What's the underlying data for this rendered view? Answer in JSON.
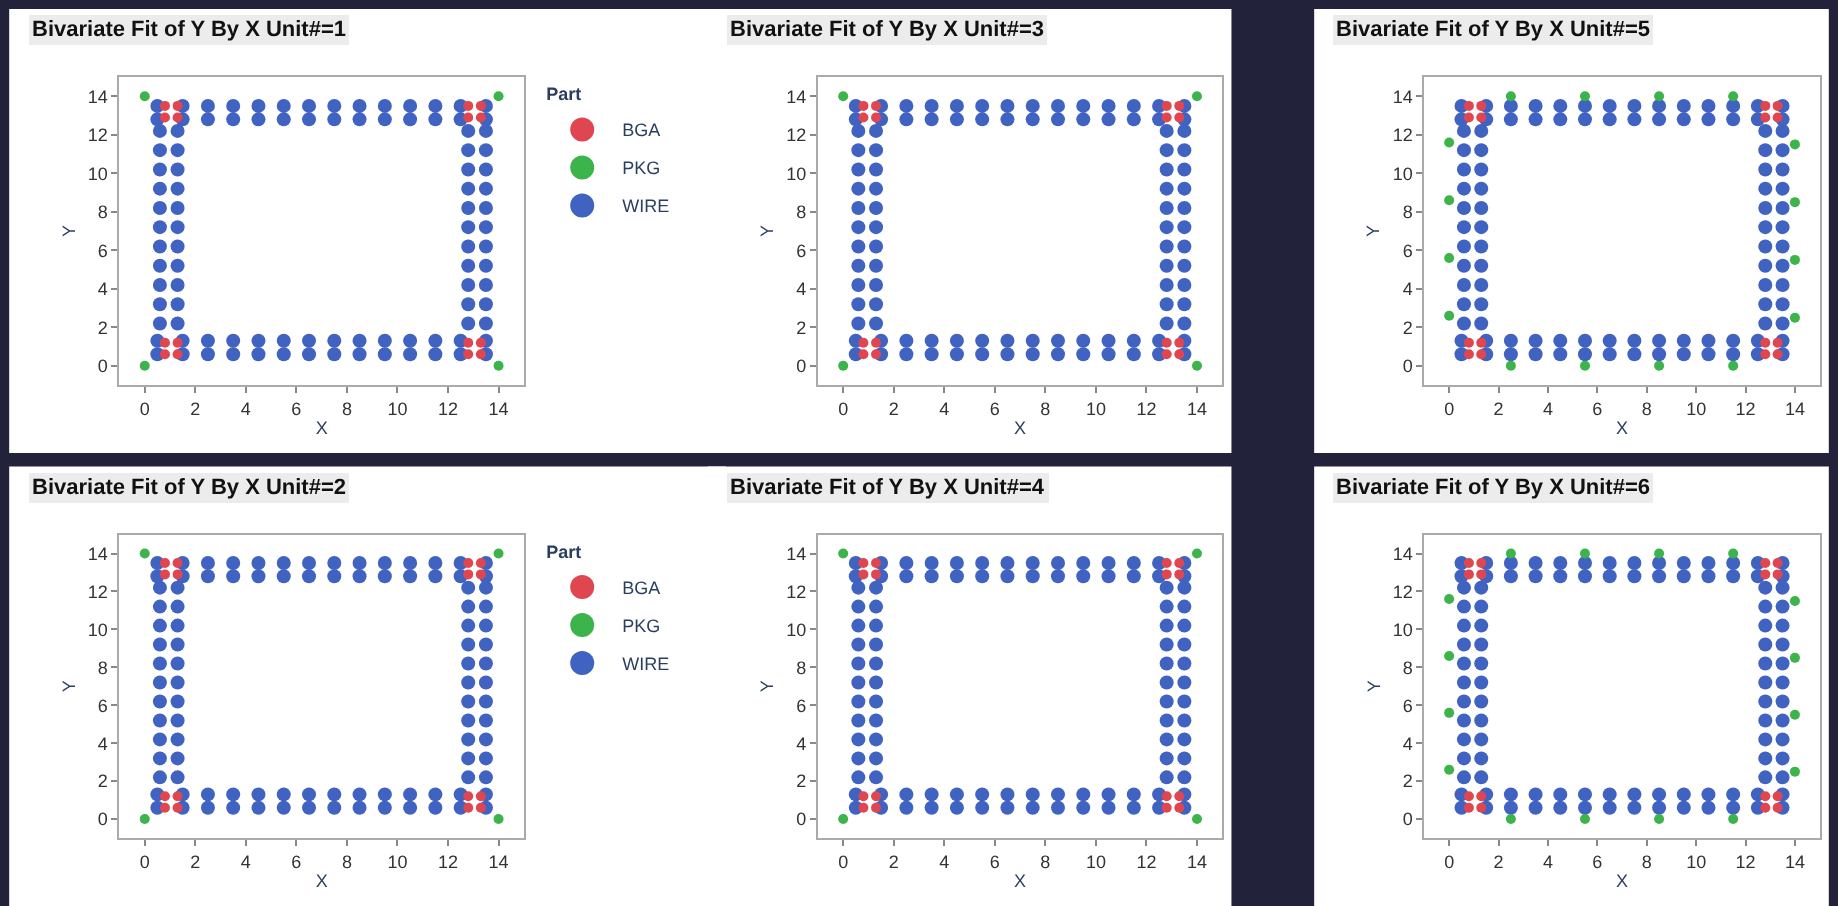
{
  "chart_data": [
    {
      "type": "scatter",
      "title": "Bivariate Fit of Y By X Unit#=1",
      "xlabel": "X",
      "ylabel": "Y",
      "legend_title": "Part",
      "legend": "right",
      "xlim": [
        -1,
        15
      ],
      "ylim": [
        -1,
        15
      ],
      "xticks": [
        0,
        2,
        4,
        6,
        8,
        10,
        12,
        14
      ],
      "yticks": [
        0,
        2,
        4,
        6,
        8,
        10,
        12,
        14
      ],
      "series": [
        {
          "name": "BGA",
          "color": "#e0464f",
          "x": [
            0.8,
            1.3,
            0.8,
            1.3,
            12.8,
            13.3,
            12.8,
            13.3,
            0.8,
            1.3,
            0.8,
            1.3,
            12.8,
            13.3,
            12.8,
            13.3
          ],
          "values": [
            0.6,
            0.6,
            1.2,
            1.2,
            0.6,
            0.6,
            1.2,
            1.2,
            12.9,
            12.9,
            13.5,
            13.5,
            12.9,
            12.9,
            13.5,
            13.5
          ]
        },
        {
          "name": "PKG",
          "color": "#3cb44b",
          "x": [
            0,
            0,
            14,
            14
          ],
          "values": [
            0,
            14,
            0,
            14
          ]
        },
        {
          "name": "WIRE",
          "color": "#4062c0",
          "x": [
            0.5,
            1.5,
            2.5,
            3.5,
            4.5,
            5.5,
            6.5,
            7.5,
            8.5,
            9.5,
            10.5,
            11.5,
            12.5,
            13.5,
            0.5,
            1.5,
            2.5,
            3.5,
            4.5,
            5.5,
            6.5,
            7.5,
            8.5,
            9.5,
            10.5,
            11.5,
            12.5,
            13.5,
            0.5,
            1.5,
            2.5,
            3.5,
            4.5,
            5.5,
            6.5,
            7.5,
            8.5,
            9.5,
            10.5,
            11.5,
            12.5,
            13.5,
            0.5,
            1.5,
            2.5,
            3.5,
            4.5,
            5.5,
            6.5,
            7.5,
            8.5,
            9.5,
            10.5,
            11.5,
            12.5,
            13.5,
            0.6,
            0.6,
            0.6,
            0.6,
            0.6,
            0.6,
            0.6,
            0.6,
            0.6,
            0.6,
            0.6,
            1.3,
            1.3,
            1.3,
            1.3,
            1.3,
            1.3,
            1.3,
            1.3,
            1.3,
            1.3,
            1.3,
            12.8,
            12.8,
            12.8,
            12.8,
            12.8,
            12.8,
            12.8,
            12.8,
            12.8,
            12.8,
            12.8,
            13.5,
            13.5,
            13.5,
            13.5,
            13.5,
            13.5,
            13.5,
            13.5,
            13.5,
            13.5,
            13.5
          ],
          "values": [
            0.6,
            0.6,
            0.6,
            0.6,
            0.6,
            0.6,
            0.6,
            0.6,
            0.6,
            0.6,
            0.6,
            0.6,
            0.6,
            0.6,
            1.3,
            1.3,
            1.3,
            1.3,
            1.3,
            1.3,
            1.3,
            1.3,
            1.3,
            1.3,
            1.3,
            1.3,
            1.3,
            1.3,
            12.8,
            12.8,
            12.8,
            12.8,
            12.8,
            12.8,
            12.8,
            12.8,
            12.8,
            12.8,
            12.8,
            12.8,
            12.8,
            12.8,
            13.5,
            13.5,
            13.5,
            13.5,
            13.5,
            13.5,
            13.5,
            13.5,
            13.5,
            13.5,
            13.5,
            13.5,
            13.5,
            13.5,
            2.2,
            3.2,
            4.2,
            5.2,
            6.2,
            7.2,
            8.2,
            9.2,
            10.2,
            11.2,
            12.2,
            2.2,
            3.2,
            4.2,
            5.2,
            6.2,
            7.2,
            8.2,
            9.2,
            10.2,
            11.2,
            12.2,
            2.2,
            3.2,
            4.2,
            5.2,
            6.2,
            7.2,
            8.2,
            9.2,
            10.2,
            11.2,
            12.2,
            2.2,
            3.2,
            4.2,
            5.2,
            6.2,
            7.2,
            8.2,
            9.2,
            10.2,
            11.2,
            12.2
          ]
        }
      ]
    },
    {
      "type": "scatter",
      "title": "Bivariate Fit of Y By X Unit#=3",
      "xlabel": "X",
      "ylabel": "Y",
      "xlim": [
        -1,
        15
      ],
      "ylim": [
        -1,
        15
      ],
      "xticks": [
        0,
        2,
        4,
        6,
        8,
        10,
        12,
        14
      ],
      "yticks": [
        0,
        2,
        4,
        6,
        8,
        10,
        12,
        14
      ],
      "series": [
        {
          "color": "#e0464f",
          "x": [
            0.8,
            1.3,
            0.8,
            1.3,
            12.8,
            13.3,
            12.8,
            13.3,
            0.8,
            1.3,
            0.8,
            1.3,
            12.8,
            13.3,
            12.8,
            13.3
          ],
          "values": [
            0.6,
            0.6,
            1.2,
            1.2,
            0.6,
            0.6,
            1.2,
            1.2,
            12.9,
            12.9,
            13.5,
            13.5,
            12.9,
            12.9,
            13.5,
            13.5
          ]
        },
        {
          "color": "#3cb44b",
          "x": [
            0,
            0,
            14,
            14
          ],
          "values": [
            0,
            14,
            0,
            14
          ]
        },
        {
          "color": "#4062c0",
          "x": [
            0.5,
            1.5,
            2.5,
            3.5,
            4.5,
            5.5,
            6.5,
            7.5,
            8.5,
            9.5,
            10.5,
            11.5,
            12.5,
            13.5,
            0.5,
            1.5,
            2.5,
            3.5,
            4.5,
            5.5,
            6.5,
            7.5,
            8.5,
            9.5,
            10.5,
            11.5,
            12.5,
            13.5,
            0.5,
            1.5,
            2.5,
            3.5,
            4.5,
            5.5,
            6.5,
            7.5,
            8.5,
            9.5,
            10.5,
            11.5,
            12.5,
            13.5,
            0.5,
            1.5,
            2.5,
            3.5,
            4.5,
            5.5,
            6.5,
            7.5,
            8.5,
            9.5,
            10.5,
            11.5,
            12.5,
            13.5,
            0.6,
            0.6,
            0.6,
            0.6,
            0.6,
            0.6,
            0.6,
            0.6,
            0.6,
            0.6,
            0.6,
            1.3,
            1.3,
            1.3,
            1.3,
            1.3,
            1.3,
            1.3,
            1.3,
            1.3,
            1.3,
            1.3,
            12.8,
            12.8,
            12.8,
            12.8,
            12.8,
            12.8,
            12.8,
            12.8,
            12.8,
            12.8,
            12.8,
            13.5,
            13.5,
            13.5,
            13.5,
            13.5,
            13.5,
            13.5,
            13.5,
            13.5,
            13.5,
            13.5
          ],
          "values": [
            0.6,
            0.6,
            0.6,
            0.6,
            0.6,
            0.6,
            0.6,
            0.6,
            0.6,
            0.6,
            0.6,
            0.6,
            0.6,
            0.6,
            1.3,
            1.3,
            1.3,
            1.3,
            1.3,
            1.3,
            1.3,
            1.3,
            1.3,
            1.3,
            1.3,
            1.3,
            1.3,
            1.3,
            12.8,
            12.8,
            12.8,
            12.8,
            12.8,
            12.8,
            12.8,
            12.8,
            12.8,
            12.8,
            12.8,
            12.8,
            12.8,
            12.8,
            13.5,
            13.5,
            13.5,
            13.5,
            13.5,
            13.5,
            13.5,
            13.5,
            13.5,
            13.5,
            13.5,
            13.5,
            13.5,
            13.5,
            2.2,
            3.2,
            4.2,
            5.2,
            6.2,
            7.2,
            8.2,
            9.2,
            10.2,
            11.2,
            12.2,
            2.2,
            3.2,
            4.2,
            5.2,
            6.2,
            7.2,
            8.2,
            9.2,
            10.2,
            11.2,
            12.2,
            2.2,
            3.2,
            4.2,
            5.2,
            6.2,
            7.2,
            8.2,
            9.2,
            10.2,
            11.2,
            12.2,
            2.2,
            3.2,
            4.2,
            5.2,
            6.2,
            7.2,
            8.2,
            9.2,
            10.2,
            11.2,
            12.2
          ]
        }
      ]
    },
    {
      "type": "scatter",
      "title": "Bivariate Fit of Y By X Unit#=5",
      "xlabel": "X",
      "ylabel": "Y",
      "xlim": [
        -1,
        15
      ],
      "ylim": [
        -1,
        15
      ],
      "xticks": [
        0,
        2,
        4,
        6,
        8,
        10,
        12,
        14
      ],
      "yticks": [
        0,
        2,
        4,
        6,
        8,
        10,
        12,
        14
      ],
      "series": [
        {
          "color": "#e0464f",
          "x": [
            0.8,
            1.3,
            0.8,
            1.3,
            12.8,
            13.3,
            12.8,
            13.3,
            0.8,
            1.3,
            0.8,
            1.3,
            12.8,
            13.3,
            12.8,
            13.3
          ],
          "values": [
            0.6,
            0.6,
            1.2,
            1.2,
            0.6,
            0.6,
            1.2,
            1.2,
            12.9,
            12.9,
            13.5,
            13.5,
            12.9,
            12.9,
            13.5,
            13.5
          ]
        },
        {
          "color": "#3cb44b",
          "x": [
            2.5,
            5.5,
            8.5,
            11.5,
            2.5,
            5.5,
            8.5,
            11.5,
            0,
            0,
            0,
            0,
            14,
            14,
            14,
            14
          ],
          "values": [
            14,
            14,
            14,
            14,
            0,
            0,
            0,
            0,
            2.6,
            5.6,
            8.6,
            11.6,
            2.5,
            5.5,
            8.5,
            11.5
          ]
        },
        {
          "color": "#4062c0",
          "x": [
            0.5,
            1.5,
            2.5,
            3.5,
            4.5,
            5.5,
            6.5,
            7.5,
            8.5,
            9.5,
            10.5,
            11.5,
            12.5,
            13.5,
            0.5,
            1.5,
            2.5,
            3.5,
            4.5,
            5.5,
            6.5,
            7.5,
            8.5,
            9.5,
            10.5,
            11.5,
            12.5,
            13.5,
            0.5,
            1.5,
            2.5,
            3.5,
            4.5,
            5.5,
            6.5,
            7.5,
            8.5,
            9.5,
            10.5,
            11.5,
            12.5,
            13.5,
            0.5,
            1.5,
            2.5,
            3.5,
            4.5,
            5.5,
            6.5,
            7.5,
            8.5,
            9.5,
            10.5,
            11.5,
            12.5,
            13.5,
            0.6,
            0.6,
            0.6,
            0.6,
            0.6,
            0.6,
            0.6,
            0.6,
            0.6,
            0.6,
            0.6,
            1.3,
            1.3,
            1.3,
            1.3,
            1.3,
            1.3,
            1.3,
            1.3,
            1.3,
            1.3,
            1.3,
            12.8,
            12.8,
            12.8,
            12.8,
            12.8,
            12.8,
            12.8,
            12.8,
            12.8,
            12.8,
            12.8,
            13.5,
            13.5,
            13.5,
            13.5,
            13.5,
            13.5,
            13.5,
            13.5,
            13.5,
            13.5,
            13.5
          ],
          "values": [
            0.6,
            0.6,
            0.6,
            0.6,
            0.6,
            0.6,
            0.6,
            0.6,
            0.6,
            0.6,
            0.6,
            0.6,
            0.6,
            0.6,
            1.3,
            1.3,
            1.3,
            1.3,
            1.3,
            1.3,
            1.3,
            1.3,
            1.3,
            1.3,
            1.3,
            1.3,
            1.3,
            1.3,
            12.8,
            12.8,
            12.8,
            12.8,
            12.8,
            12.8,
            12.8,
            12.8,
            12.8,
            12.8,
            12.8,
            12.8,
            12.8,
            12.8,
            13.5,
            13.5,
            13.5,
            13.5,
            13.5,
            13.5,
            13.5,
            13.5,
            13.5,
            13.5,
            13.5,
            13.5,
            13.5,
            13.5,
            2.2,
            3.2,
            4.2,
            5.2,
            6.2,
            7.2,
            8.2,
            9.2,
            10.2,
            11.2,
            12.2,
            2.2,
            3.2,
            4.2,
            5.2,
            6.2,
            7.2,
            8.2,
            9.2,
            10.2,
            11.2,
            12.2,
            2.2,
            3.2,
            4.2,
            5.2,
            6.2,
            7.2,
            8.2,
            9.2,
            10.2,
            11.2,
            12.2,
            2.2,
            3.2,
            4.2,
            5.2,
            6.2,
            7.2,
            8.2,
            9.2,
            10.2,
            11.2,
            12.2
          ]
        }
      ]
    },
    {
      "type": "scatter",
      "title": "Bivariate Fit of Y By X Unit#=2",
      "xlabel": "X",
      "ylabel": "Y",
      "legend_title": "Part",
      "legend": "right",
      "xlim": [
        -1,
        15
      ],
      "ylim": [
        -1,
        15
      ],
      "xticks": [
        0,
        2,
        4,
        6,
        8,
        10,
        12,
        14
      ],
      "yticks": [
        0,
        2,
        4,
        6,
        8,
        10,
        12,
        14
      ],
      "series": [
        {
          "name": "BGA",
          "color": "#e0464f",
          "x": [
            0.8,
            1.3,
            0.8,
            1.3,
            12.8,
            13.3,
            12.8,
            13.3,
            0.8,
            1.3,
            0.8,
            1.3,
            12.8,
            13.3,
            12.8,
            13.3
          ],
          "values": [
            0.6,
            0.6,
            1.2,
            1.2,
            0.6,
            0.6,
            1.2,
            1.2,
            12.9,
            12.9,
            13.5,
            13.5,
            12.9,
            12.9,
            13.5,
            13.5
          ]
        },
        {
          "name": "PKG",
          "color": "#3cb44b",
          "x": [
            0,
            0,
            14,
            14
          ],
          "values": [
            0,
            14,
            0,
            14
          ]
        },
        {
          "name": "WIRE",
          "color": "#4062c0",
          "x": [
            0.5,
            1.5,
            2.5,
            3.5,
            4.5,
            5.5,
            6.5,
            7.5,
            8.5,
            9.5,
            10.5,
            11.5,
            12.5,
            13.5,
            0.5,
            1.5,
            2.5,
            3.5,
            4.5,
            5.5,
            6.5,
            7.5,
            8.5,
            9.5,
            10.5,
            11.5,
            12.5,
            13.5,
            0.5,
            1.5,
            2.5,
            3.5,
            4.5,
            5.5,
            6.5,
            7.5,
            8.5,
            9.5,
            10.5,
            11.5,
            12.5,
            13.5,
            0.5,
            1.5,
            2.5,
            3.5,
            4.5,
            5.5,
            6.5,
            7.5,
            8.5,
            9.5,
            10.5,
            11.5,
            12.5,
            13.5,
            0.6,
            0.6,
            0.6,
            0.6,
            0.6,
            0.6,
            0.6,
            0.6,
            0.6,
            0.6,
            0.6,
            1.3,
            1.3,
            1.3,
            1.3,
            1.3,
            1.3,
            1.3,
            1.3,
            1.3,
            1.3,
            1.3,
            12.8,
            12.8,
            12.8,
            12.8,
            12.8,
            12.8,
            12.8,
            12.8,
            12.8,
            12.8,
            12.8,
            13.5,
            13.5,
            13.5,
            13.5,
            13.5,
            13.5,
            13.5,
            13.5,
            13.5,
            13.5,
            13.5
          ],
          "values": [
            0.6,
            0.6,
            0.6,
            0.6,
            0.6,
            0.6,
            0.6,
            0.6,
            0.6,
            0.6,
            0.6,
            0.6,
            0.6,
            0.6,
            1.3,
            1.3,
            1.3,
            1.3,
            1.3,
            1.3,
            1.3,
            1.3,
            1.3,
            1.3,
            1.3,
            1.3,
            1.3,
            1.3,
            12.8,
            12.8,
            12.8,
            12.8,
            12.8,
            12.8,
            12.8,
            12.8,
            12.8,
            12.8,
            12.8,
            12.8,
            12.8,
            12.8,
            13.5,
            13.5,
            13.5,
            13.5,
            13.5,
            13.5,
            13.5,
            13.5,
            13.5,
            13.5,
            13.5,
            13.5,
            13.5,
            13.5,
            2.2,
            3.2,
            4.2,
            5.2,
            6.2,
            7.2,
            8.2,
            9.2,
            10.2,
            11.2,
            12.2,
            2.2,
            3.2,
            4.2,
            5.2,
            6.2,
            7.2,
            8.2,
            9.2,
            10.2,
            11.2,
            12.2,
            2.2,
            3.2,
            4.2,
            5.2,
            6.2,
            7.2,
            8.2,
            9.2,
            10.2,
            11.2,
            12.2,
            2.2,
            3.2,
            4.2,
            5.2,
            6.2,
            7.2,
            8.2,
            9.2,
            10.2,
            11.2,
            12.2
          ]
        }
      ]
    },
    {
      "type": "scatter",
      "title": "Bivariate Fit of Y By X Unit#=4",
      "xlabel": "X",
      "ylabel": "Y",
      "xlim": [
        -1,
        15
      ],
      "ylim": [
        -1,
        15
      ],
      "xticks": [
        0,
        2,
        4,
        6,
        8,
        10,
        12,
        14
      ],
      "yticks": [
        0,
        2,
        4,
        6,
        8,
        10,
        12,
        14
      ],
      "series": [
        {
          "color": "#e0464f",
          "x": [
            0.8,
            1.3,
            0.8,
            1.3,
            12.8,
            13.3,
            12.8,
            13.3,
            0.8,
            1.3,
            0.8,
            1.3,
            12.8,
            13.3,
            12.8,
            13.3
          ],
          "values": [
            0.6,
            0.6,
            1.2,
            1.2,
            0.6,
            0.6,
            1.2,
            1.2,
            12.9,
            12.9,
            13.5,
            13.5,
            12.9,
            12.9,
            13.5,
            13.5
          ]
        },
        {
          "color": "#3cb44b",
          "x": [
            0,
            0,
            14,
            14
          ],
          "values": [
            0,
            14,
            0,
            14
          ]
        },
        {
          "color": "#4062c0",
          "x": [
            0.5,
            1.5,
            2.5,
            3.5,
            4.5,
            5.5,
            6.5,
            7.5,
            8.5,
            9.5,
            10.5,
            11.5,
            12.5,
            13.5,
            0.5,
            1.5,
            2.5,
            3.5,
            4.5,
            5.5,
            6.5,
            7.5,
            8.5,
            9.5,
            10.5,
            11.5,
            12.5,
            13.5,
            0.5,
            1.5,
            2.5,
            3.5,
            4.5,
            5.5,
            6.5,
            7.5,
            8.5,
            9.5,
            10.5,
            11.5,
            12.5,
            13.5,
            0.5,
            1.5,
            2.5,
            3.5,
            4.5,
            5.5,
            6.5,
            7.5,
            8.5,
            9.5,
            10.5,
            11.5,
            12.5,
            13.5,
            0.6,
            0.6,
            0.6,
            0.6,
            0.6,
            0.6,
            0.6,
            0.6,
            0.6,
            0.6,
            0.6,
            1.3,
            1.3,
            1.3,
            1.3,
            1.3,
            1.3,
            1.3,
            1.3,
            1.3,
            1.3,
            1.3,
            12.8,
            12.8,
            12.8,
            12.8,
            12.8,
            12.8,
            12.8,
            12.8,
            12.8,
            12.8,
            12.8,
            13.5,
            13.5,
            13.5,
            13.5,
            13.5,
            13.5,
            13.5,
            13.5,
            13.5,
            13.5,
            13.5
          ],
          "values": [
            0.6,
            0.6,
            0.6,
            0.6,
            0.6,
            0.6,
            0.6,
            0.6,
            0.6,
            0.6,
            0.6,
            0.6,
            0.6,
            0.6,
            1.3,
            1.3,
            1.3,
            1.3,
            1.3,
            1.3,
            1.3,
            1.3,
            1.3,
            1.3,
            1.3,
            1.3,
            1.3,
            1.3,
            12.8,
            12.8,
            12.8,
            12.8,
            12.8,
            12.8,
            12.8,
            12.8,
            12.8,
            12.8,
            12.8,
            12.8,
            12.8,
            12.8,
            13.5,
            13.5,
            13.5,
            13.5,
            13.5,
            13.5,
            13.5,
            13.5,
            13.5,
            13.5,
            13.5,
            13.5,
            13.5,
            13.5,
            2.2,
            3.2,
            4.2,
            5.2,
            6.2,
            7.2,
            8.2,
            9.2,
            10.2,
            11.2,
            12.2,
            2.2,
            3.2,
            4.2,
            5.2,
            6.2,
            7.2,
            8.2,
            9.2,
            10.2,
            11.2,
            12.2,
            2.2,
            3.2,
            4.2,
            5.2,
            6.2,
            7.2,
            8.2,
            9.2,
            10.2,
            11.2,
            12.2,
            2.2,
            3.2,
            4.2,
            5.2,
            6.2,
            7.2,
            8.2,
            9.2,
            10.2,
            11.2,
            12.2
          ]
        }
      ]
    },
    {
      "type": "scatter",
      "title": "Bivariate Fit of Y By X Unit#=6",
      "xlabel": "X",
      "ylabel": "Y",
      "xlim": [
        -1,
        15
      ],
      "ylim": [
        -1,
        15
      ],
      "xticks": [
        0,
        2,
        4,
        6,
        8,
        10,
        12,
        14
      ],
      "yticks": [
        0,
        2,
        4,
        6,
        8,
        10,
        12,
        14
      ],
      "series": [
        {
          "color": "#e0464f",
          "x": [
            0.8,
            1.3,
            0.8,
            1.3,
            12.8,
            13.3,
            12.8,
            13.3,
            0.8,
            1.3,
            0.8,
            1.3,
            12.8,
            13.3,
            12.8,
            13.3
          ],
          "values": [
            0.6,
            0.6,
            1.2,
            1.2,
            0.6,
            0.6,
            1.2,
            1.2,
            12.9,
            12.9,
            13.5,
            13.5,
            12.9,
            12.9,
            13.5,
            13.5
          ]
        },
        {
          "color": "#3cb44b",
          "x": [
            2.5,
            5.5,
            8.5,
            11.5,
            2.5,
            5.5,
            8.5,
            11.5,
            0,
            0,
            0,
            0,
            14,
            14,
            14,
            14
          ],
          "values": [
            14,
            14,
            14,
            14,
            0,
            0,
            0,
            0,
            2.6,
            5.6,
            8.6,
            11.6,
            2.5,
            5.5,
            8.5,
            11.5
          ]
        },
        {
          "color": "#4062c0",
          "x": [
            0.5,
            1.5,
            2.5,
            3.5,
            4.5,
            5.5,
            6.5,
            7.5,
            8.5,
            9.5,
            10.5,
            11.5,
            12.5,
            13.5,
            0.5,
            1.5,
            2.5,
            3.5,
            4.5,
            5.5,
            6.5,
            7.5,
            8.5,
            9.5,
            10.5,
            11.5,
            12.5,
            13.5,
            0.5,
            1.5,
            2.5,
            3.5,
            4.5,
            5.5,
            6.5,
            7.5,
            8.5,
            9.5,
            10.5,
            11.5,
            12.5,
            13.5,
            0.5,
            1.5,
            2.5,
            3.5,
            4.5,
            5.5,
            6.5,
            7.5,
            8.5,
            9.5,
            10.5,
            11.5,
            12.5,
            13.5,
            0.6,
            0.6,
            0.6,
            0.6,
            0.6,
            0.6,
            0.6,
            0.6,
            0.6,
            0.6,
            0.6,
            1.3,
            1.3,
            1.3,
            1.3,
            1.3,
            1.3,
            1.3,
            1.3,
            1.3,
            1.3,
            1.3,
            12.8,
            12.8,
            12.8,
            12.8,
            12.8,
            12.8,
            12.8,
            12.8,
            12.8,
            12.8,
            12.8,
            13.5,
            13.5,
            13.5,
            13.5,
            13.5,
            13.5,
            13.5,
            13.5,
            13.5,
            13.5,
            13.5
          ],
          "values": [
            0.6,
            0.6,
            0.6,
            0.6,
            0.6,
            0.6,
            0.6,
            0.6,
            0.6,
            0.6,
            0.6,
            0.6,
            0.6,
            0.6,
            1.3,
            1.3,
            1.3,
            1.3,
            1.3,
            1.3,
            1.3,
            1.3,
            1.3,
            1.3,
            1.3,
            1.3,
            1.3,
            1.3,
            12.8,
            12.8,
            12.8,
            12.8,
            12.8,
            12.8,
            12.8,
            12.8,
            12.8,
            12.8,
            12.8,
            12.8,
            12.8,
            12.8,
            13.5,
            13.5,
            13.5,
            13.5,
            13.5,
            13.5,
            13.5,
            13.5,
            13.5,
            13.5,
            13.5,
            13.5,
            13.5,
            13.5,
            2.2,
            3.2,
            4.2,
            5.2,
            6.2,
            7.2,
            8.2,
            9.2,
            10.2,
            11.2,
            12.2,
            2.2,
            3.2,
            4.2,
            5.2,
            6.2,
            7.2,
            8.2,
            9.2,
            10.2,
            11.2,
            12.2,
            2.2,
            3.2,
            4.2,
            5.2,
            6.2,
            7.2,
            8.2,
            9.2,
            10.2,
            11.2,
            12.2,
            2.2,
            3.2,
            4.2,
            5.2,
            6.2,
            7.2,
            8.2,
            9.2,
            10.2,
            11.2,
            12.2
          ]
        }
      ]
    }
  ]
}
